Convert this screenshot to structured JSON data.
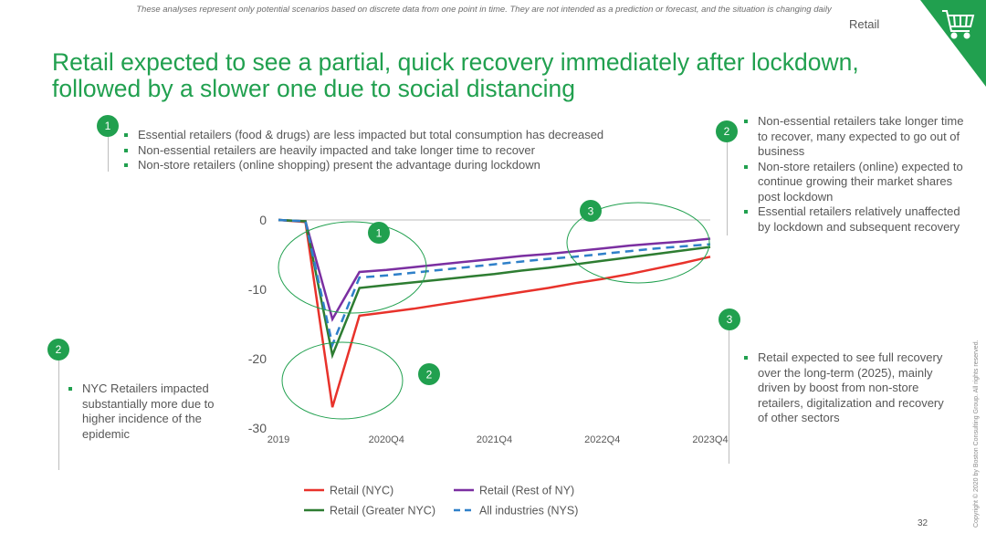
{
  "disclaimer": "These analyses represent only potential scenarios based on discrete data from one point in time. They are not intended as a prediction or forecast, and the situation is changing daily",
  "section_label": "Retail",
  "title_line1": "Retail expected to see a partial, quick recovery immediately after lockdown,",
  "title_line2": "followed by a slower one due to social distancing",
  "callout1": {
    "badge": "1",
    "bullets": [
      "Essential retailers (food & drugs) are less impacted but total consumption has decreased",
      "Non-essential retailers are heavily impacted and take longer time to recover",
      "Non-store retailers (online shopping) present the advantage during lockdown"
    ]
  },
  "callout2_right": {
    "badge": "2",
    "bullets": [
      "Non-essential retailers take longer time to recover, many expected to go out of business",
      "Non-store retailers (online) expected to continue growing their market shares post lockdown",
      "Essential retailers relatively unaffected by lockdown and subsequent recovery"
    ]
  },
  "callout2_left": {
    "badge": "2",
    "bullets": [
      "NYC Retailers impacted substantially more due to higher incidence of the epidemic"
    ]
  },
  "callout3": {
    "badge": "3",
    "bullets": [
      "Retail expected to see full recovery over the long-term (2025), mainly driven by boost from non-store retailers, digitalization and recovery of other sectors"
    ]
  },
  "chart_badges": [
    "1",
    "2",
    "3"
  ],
  "page_number": "32",
  "copyright": "Copyright © 2020 by Boston Consulting Group. All rights reserved.",
  "colors": {
    "accent": "#21a04f",
    "nyc": "#e8322b",
    "rest_of_ny": "#7b2fa1",
    "greater_nyc": "#2e7d32",
    "all_industries": "#2f80c9"
  },
  "icons": {
    "corner": "shopping-cart-icon"
  },
  "chart_data": {
    "type": "line",
    "x": [
      "2019",
      "2020Q1",
      "2020Q2",
      "2020Q3",
      "2020Q4",
      "2021Q1",
      "2021Q2",
      "2021Q3",
      "2021Q4",
      "2022Q1",
      "2022Q2",
      "2022Q3",
      "2022Q4",
      "2023Q1",
      "2023Q2",
      "2023Q3",
      "2023Q4"
    ],
    "x_tick_labels": [
      "2019",
      "2020Q4",
      "2021Q4",
      "2022Q4",
      "2023Q4"
    ],
    "y_tick_labels": [
      "0",
      "-10",
      "-20",
      "-30"
    ],
    "ylim": [
      -30,
      0
    ],
    "grid": false,
    "legend_position": "bottom",
    "series": [
      {
        "name": "Retail (NYC)",
        "style": "solid",
        "color": "#e8322b",
        "values": [
          0,
          -0.3,
          -27,
          -13.8,
          -13.3,
          -12.8,
          -12.2,
          -11.6,
          -11.0,
          -10.4,
          -9.8,
          -9.1,
          -8.5,
          -7.8,
          -7.0,
          -6.2,
          -5.3
        ]
      },
      {
        "name": "Retail (Rest of NY)",
        "style": "solid",
        "color": "#7b2fa1",
        "values": [
          0,
          -0.2,
          -14.3,
          -7.5,
          -7.2,
          -6.8,
          -6.4,
          -6.0,
          -5.6,
          -5.2,
          -4.9,
          -4.5,
          -4.1,
          -3.7,
          -3.4,
          -3.1,
          -2.7
        ]
      },
      {
        "name": "Retail (Greater NYC)",
        "style": "solid",
        "color": "#2e7d32",
        "values": [
          0,
          -0.2,
          -19.5,
          -9.8,
          -9.4,
          -9.0,
          -8.6,
          -8.2,
          -7.8,
          -7.3,
          -6.9,
          -6.4,
          -5.9,
          -5.4,
          -4.9,
          -4.4,
          -3.9
        ]
      },
      {
        "name": "All industries (NYS)",
        "style": "dashed",
        "color": "#2f80c9",
        "values": [
          0,
          -0.2,
          -18.0,
          -8.3,
          -8.0,
          -7.6,
          -7.2,
          -6.8,
          -6.4,
          -6.0,
          -5.6,
          -5.3,
          -4.9,
          -4.5,
          -4.1,
          -3.8,
          -3.5
        ]
      }
    ]
  }
}
